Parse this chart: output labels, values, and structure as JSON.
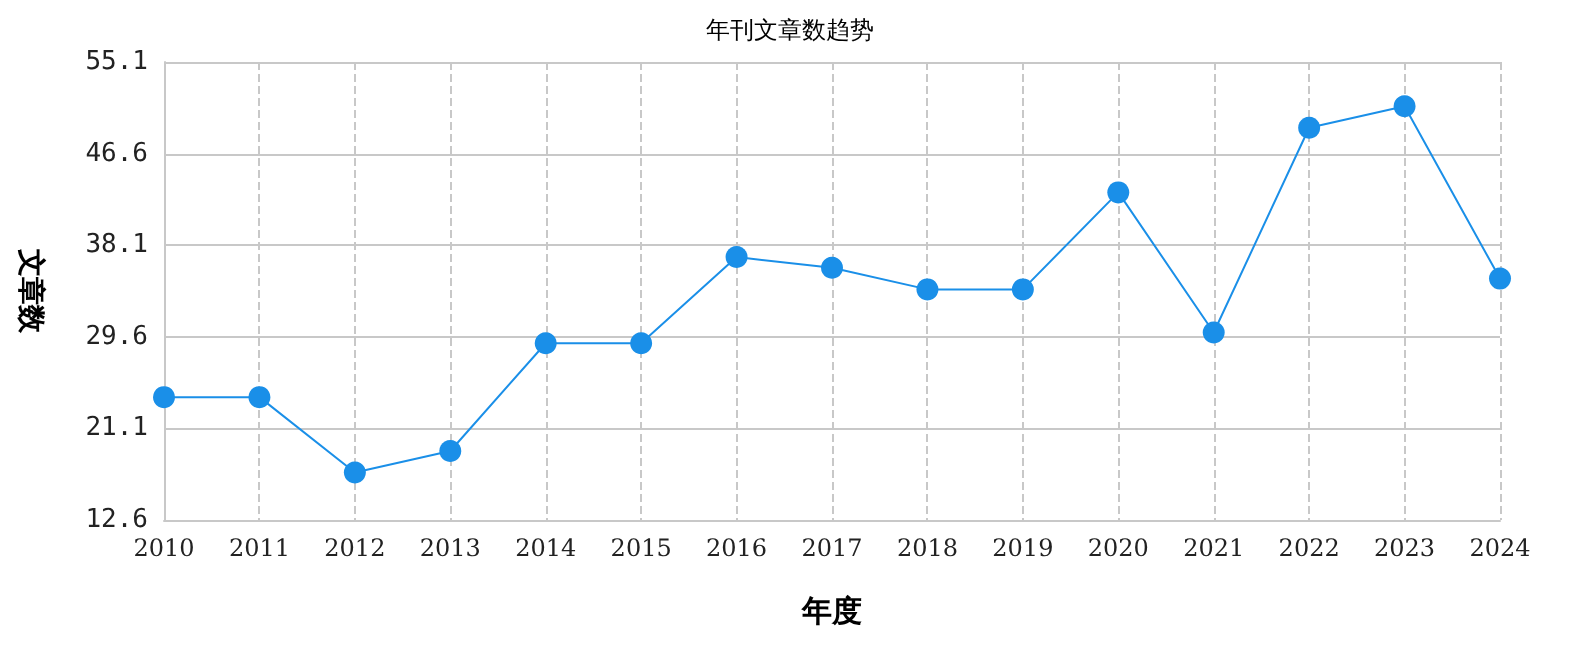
{
  "chart_data": {
    "type": "line",
    "title": "年刊文章数趋势",
    "xlabel": "年度",
    "ylabel": "文章数",
    "categories": [
      "2010",
      "2011",
      "2012",
      "2013",
      "2014",
      "2015",
      "2016",
      "2017",
      "2018",
      "2019",
      "2020",
      "2021",
      "2022",
      "2023",
      "2024"
    ],
    "series": [
      {
        "color": "#1a8fe8",
        "values": [
          24,
          24,
          17,
          19,
          29,
          29,
          37,
          36,
          34,
          34,
          43,
          30,
          49,
          51,
          35
        ]
      }
    ],
    "ylim": [
      12.6,
      55.1
    ],
    "yticks": [
      12.6,
      21.1,
      29.6,
      38.1,
      46.6,
      55.1
    ],
    "grid": true,
    "marker": "circle",
    "line_style": "solid"
  }
}
